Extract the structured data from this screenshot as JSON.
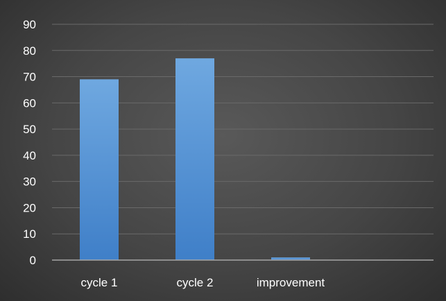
{
  "chart_data": {
    "type": "bar",
    "categories": [
      "cycle 1",
      "cycle 2",
      "improvement"
    ],
    "values": [
      69,
      77,
      1
    ],
    "title": "",
    "xlabel": "",
    "ylabel": "",
    "ylim": [
      0,
      90
    ],
    "yticks": [
      0,
      10,
      20,
      30,
      40,
      50,
      60,
      70,
      80,
      90
    ],
    "grid": true,
    "legend": "none",
    "colors": {
      "bar_top": "#6fa8e0",
      "bar_bottom": "#3f7fc8",
      "background": "#4a4a4a",
      "text": "#ffffff"
    }
  }
}
